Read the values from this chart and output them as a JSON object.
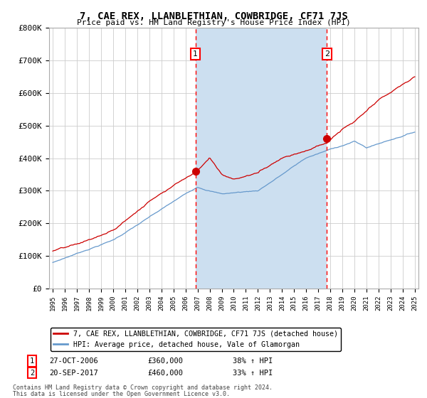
{
  "title": "7, CAE REX, LLANBLETHIAN, COWBRIDGE, CF71 7JS",
  "subtitle": "Price paid vs. HM Land Registry's House Price Index (HPI)",
  "plot_bg_color": "#ffffff",
  "fill_color": "#ccdff0",
  "ylim": [
    0,
    800000
  ],
  "yticks": [
    0,
    100000,
    200000,
    300000,
    400000,
    500000,
    600000,
    700000,
    800000
  ],
  "ytick_labels": [
    "£0",
    "£100K",
    "£200K",
    "£300K",
    "£400K",
    "£500K",
    "£600K",
    "£700K",
    "£800K"
  ],
  "x_start_year": 1995,
  "x_end_year": 2025,
  "property_color": "#cc0000",
  "hpi_color": "#6699cc",
  "property_label": "7, CAE REX, LLANBLETHIAN, COWBRIDGE, CF71 7JS (detached house)",
  "hpi_label": "HPI: Average price, detached house, Vale of Glamorgan",
  "marker1_year": 2006.83,
  "marker1_value": 360000,
  "marker2_year": 2017.72,
  "marker2_value": 460000,
  "marker1_date": "27-OCT-2006",
  "marker1_price": "£360,000",
  "marker1_hpi": "38% ↑ HPI",
  "marker2_date": "20-SEP-2017",
  "marker2_price": "£460,000",
  "marker2_hpi": "33% ↑ HPI",
  "footer1": "Contains HM Land Registry data © Crown copyright and database right 2024.",
  "footer2": "This data is licensed under the Open Government Licence v3.0."
}
